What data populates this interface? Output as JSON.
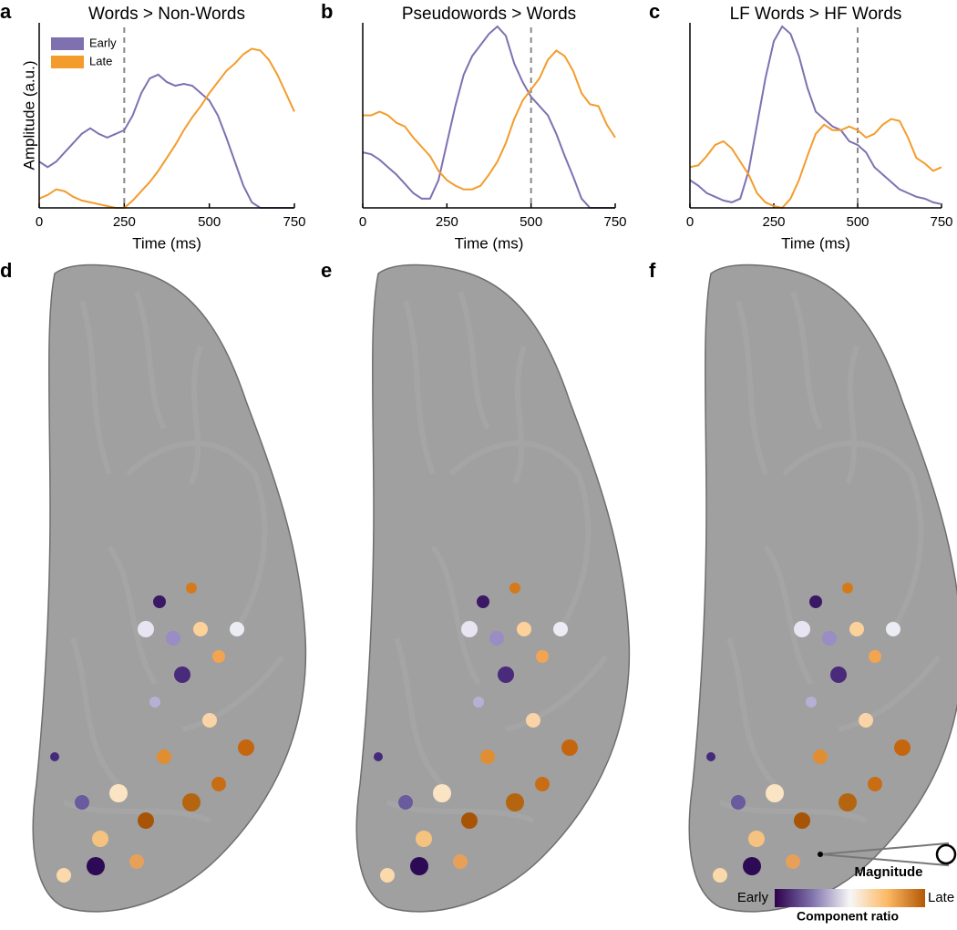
{
  "chart_data": [
    {
      "type": "line",
      "panel": "a",
      "title": "Words > Non-Words",
      "xlabel": "Time (ms)",
      "ylabel": "Amplitude (a.u.)",
      "x": [
        0,
        25,
        50,
        75,
        100,
        125,
        150,
        175,
        200,
        225,
        250,
        275,
        300,
        325,
        350,
        375,
        400,
        425,
        450,
        475,
        500,
        525,
        550,
        575,
        600,
        625,
        650,
        675,
        700,
        725,
        750
      ],
      "series": [
        {
          "name": "Early",
          "color": "#7f70b0",
          "values": [
            0.25,
            0.22,
            0.25,
            0.3,
            0.35,
            0.4,
            0.43,
            0.4,
            0.38,
            0.4,
            0.42,
            0.5,
            0.62,
            0.7,
            0.72,
            0.68,
            0.66,
            0.67,
            0.66,
            0.62,
            0.58,
            0.5,
            0.38,
            0.25,
            0.12,
            0.03,
            0,
            0,
            0,
            0,
            0
          ]
        },
        {
          "name": "Late",
          "color": "#f39c2c",
          "values": [
            0.05,
            0.07,
            0.1,
            0.09,
            0.06,
            0.04,
            0.03,
            0.02,
            0.01,
            0,
            0,
            0.04,
            0.09,
            0.14,
            0.2,
            0.27,
            0.34,
            0.42,
            0.49,
            0.55,
            0.62,
            0.68,
            0.74,
            0.78,
            0.83,
            0.86,
            0.85,
            0.8,
            0.72,
            0.62,
            0.52
          ]
        }
      ],
      "reference_line": 250,
      "xlim": [
        0,
        750
      ],
      "xticks": [
        0,
        250,
        500,
        750
      ],
      "ylim": [
        0,
        1
      ],
      "legend": "upper left"
    },
    {
      "type": "line",
      "panel": "b",
      "title": "Pseudowords > Words",
      "xlabel": "Time (ms)",
      "x": [
        0,
        25,
        50,
        75,
        100,
        125,
        150,
        175,
        200,
        225,
        250,
        275,
        300,
        325,
        350,
        375,
        400,
        425,
        450,
        475,
        500,
        525,
        550,
        575,
        600,
        625,
        650,
        675,
        700,
        725,
        750
      ],
      "series": [
        {
          "name": "Early",
          "color": "#7f70b0",
          "values": [
            0.3,
            0.29,
            0.26,
            0.22,
            0.18,
            0.13,
            0.08,
            0.05,
            0.05,
            0.15,
            0.35,
            0.55,
            0.72,
            0.82,
            0.88,
            0.94,
            0.98,
            0.93,
            0.78,
            0.68,
            0.6,
            0.55,
            0.5,
            0.4,
            0.28,
            0.17,
            0.05,
            0,
            0,
            0,
            0
          ]
        },
        {
          "name": "Late",
          "color": "#f39c2c",
          "values": [
            0.5,
            0.5,
            0.52,
            0.5,
            0.46,
            0.44,
            0.38,
            0.33,
            0.28,
            0.2,
            0.15,
            0.12,
            0.1,
            0.1,
            0.12,
            0.18,
            0.25,
            0.35,
            0.48,
            0.58,
            0.64,
            0.7,
            0.8,
            0.85,
            0.82,
            0.74,
            0.62,
            0.56,
            0.55,
            0.45,
            0.38
          ]
        }
      ],
      "reference_line": 500,
      "xlim": [
        0,
        750
      ],
      "xticks": [
        0,
        250,
        500,
        750
      ],
      "ylim": [
        0,
        1
      ]
    },
    {
      "type": "line",
      "panel": "c",
      "title": "LF Words > HF Words",
      "xlabel": "Time (ms)",
      "x": [
        0,
        25,
        50,
        75,
        100,
        125,
        150,
        175,
        200,
        225,
        250,
        275,
        300,
        325,
        350,
        375,
        400,
        425,
        450,
        475,
        500,
        525,
        550,
        575,
        600,
        625,
        650,
        675,
        700,
        725,
        750
      ],
      "series": [
        {
          "name": "Early",
          "color": "#7f70b0",
          "values": [
            0.15,
            0.12,
            0.08,
            0.06,
            0.04,
            0.03,
            0.05,
            0.2,
            0.45,
            0.7,
            0.9,
            0.98,
            0.94,
            0.82,
            0.65,
            0.52,
            0.48,
            0.44,
            0.42,
            0.36,
            0.34,
            0.3,
            0.22,
            0.18,
            0.14,
            0.1,
            0.08,
            0.06,
            0.05,
            0.03,
            0.02
          ]
        },
        {
          "name": "Late",
          "color": "#f39c2c",
          "values": [
            0.22,
            0.23,
            0.28,
            0.34,
            0.36,
            0.32,
            0.25,
            0.18,
            0.08,
            0.03,
            0.01,
            0,
            0.05,
            0.15,
            0.28,
            0.4,
            0.45,
            0.42,
            0.42,
            0.44,
            0.42,
            0.38,
            0.4,
            0.45,
            0.48,
            0.47,
            0.38,
            0.27,
            0.24,
            0.2,
            0.22
          ]
        }
      ],
      "reference_line": 500,
      "xlim": [
        0,
        750
      ],
      "xticks": [
        0,
        250,
        500,
        750
      ],
      "ylim": [
        0,
        1
      ]
    }
  ],
  "brain_panels": {
    "labels": [
      "d",
      "e",
      "f"
    ],
    "magnitude_label": "Magnitude",
    "colorbar": {
      "low": "Early",
      "title": "Component ratio",
      "high": "Late"
    }
  }
}
